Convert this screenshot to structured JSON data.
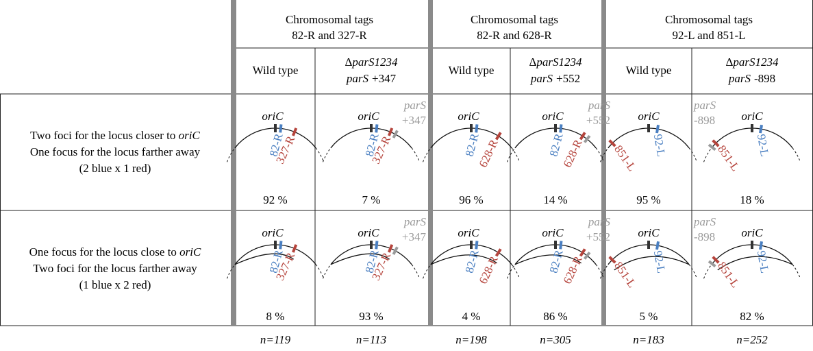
{
  "groups": [
    {
      "title": [
        "Chromosomal tags",
        "82-R and 327-R"
      ],
      "conditions": [
        {
          "label": "Wild type"
        },
        {
          "deletion": [
            "Δ",
            "parS1234"
          ],
          "insert": [
            "parS",
            "+347"
          ]
        }
      ]
    },
    {
      "title": [
        "Chromosomal tags",
        "82-R and 628-R"
      ],
      "conditions": [
        {
          "label": "Wild type"
        },
        {
          "deletion": [
            "Δ",
            "parS1234"
          ],
          "insert": [
            "parS",
            "+552"
          ]
        }
      ]
    },
    {
      "title": [
        "Chromosomal tags",
        "92-L and 851-L"
      ],
      "conditions": [
        {
          "label": "Wild type"
        },
        {
          "deletion": [
            "Δ",
            "parS1234"
          ],
          "insert": [
            "parS",
            "-898"
          ]
        }
      ]
    }
  ],
  "rows": [
    {
      "label": [
        [
          "Two foci for the locus closer to ",
          "oriC"
        ],
        [
          "One focus for the locus farther away"
        ],
        [
          "(2 blue x 1 red)"
        ]
      ],
      "cells": [
        {
          "diagram": {
            "origin": "oriC",
            "blue": "82-R",
            "red": "327-R"
          },
          "percent": "92 %"
        },
        {
          "diagram": {
            "origin": "oriC",
            "blue": "82-R",
            "red": "327-R",
            "parS": "parS",
            "position": "+347"
          },
          "percent": "7 %"
        },
        {
          "diagram": {
            "origin": "oriC",
            "blue": "82-R",
            "red": "628-R"
          },
          "percent": "96 %"
        },
        {
          "diagram": {
            "origin": "oriC",
            "blue": "82-R",
            "red": "628-R",
            "parS": "parS",
            "position": "+552"
          },
          "percent": "14 %"
        },
        {
          "diagram": {
            "origin": "oriC",
            "blue": "92-L",
            "red": "851-L"
          },
          "percent": "95 %"
        },
        {
          "diagram": {
            "origin": "oriC",
            "blue": "92-L",
            "red": "851-L",
            "parS": "parS",
            "position": "-898"
          },
          "percent": "18 %"
        }
      ]
    },
    {
      "label": [
        [
          "One focus for the locus close to ",
          "oriC"
        ],
        [
          "Two foci for the locus farther away"
        ],
        [
          "(1 blue x 2 red)"
        ]
      ],
      "cells": [
        {
          "diagram": {
            "origin": "oriC",
            "blue": "82-R",
            "red": "327-R"
          },
          "percent": "8 %"
        },
        {
          "diagram": {
            "origin": "oriC",
            "blue": "82-R",
            "red": "327-R",
            "parS": "parS",
            "position": "+347"
          },
          "percent": "93 %"
        },
        {
          "diagram": {
            "origin": "oriC",
            "blue": "82-R",
            "red": "628-R"
          },
          "percent": "4 %"
        },
        {
          "diagram": {
            "origin": "oriC",
            "blue": "82-R",
            "red": "628-R",
            "parS": "parS",
            "position": "+552"
          },
          "percent": "86 %"
        },
        {
          "diagram": {
            "origin": "oriC",
            "blue": "92-L",
            "red": "851-L"
          },
          "percent": "5 %"
        },
        {
          "diagram": {
            "origin": "oriC",
            "blue": "92-L",
            "red": "851-L",
            "parS": "parS",
            "position": "-898"
          },
          "percent": "82 %"
        }
      ]
    }
  ],
  "n": [
    "n=119",
    "n=113",
    "n=198",
    "n=305",
    "n=183",
    "n=252"
  ]
}
